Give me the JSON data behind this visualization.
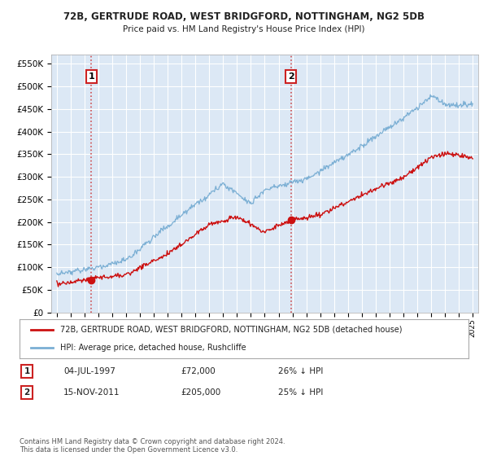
{
  "title": "72B, GERTRUDE ROAD, WEST BRIDGFORD, NOTTINGHAM, NG2 5DB",
  "subtitle": "Price paid vs. HM Land Registry's House Price Index (HPI)",
  "background_color": "#ffffff",
  "plot_bg_color": "#dce8f5",
  "grid_color": "#ffffff",
  "hpi_color": "#7bafd4",
  "price_color": "#cc1111",
  "marker_color": "#cc1111",
  "sale1_date_num": 1997.5,
  "sale1_price": 72000,
  "sale2_date_num": 2011.88,
  "sale2_price": 205000,
  "ylim_min": 0,
  "ylim_max": 570000,
  "xlim_min": 1994.6,
  "xlim_max": 2025.4,
  "legend_label_red": "72B, GERTRUDE ROAD, WEST BRIDGFORD, NOTTINGHAM, NG2 5DB (detached house)",
  "legend_label_blue": "HPI: Average price, detached house, Rushcliffe",
  "footnote": "Contains HM Land Registry data © Crown copyright and database right 2024.\nThis data is licensed under the Open Government Licence v3.0.",
  "table_row1_num": "1",
  "table_row1_date": "04-JUL-1997",
  "table_row1_price": "£72,000",
  "table_row1_hpi": "26% ↓ HPI",
  "table_row2_num": "2",
  "table_row2_date": "15-NOV-2011",
  "table_row2_price": "£205,000",
  "table_row2_hpi": "25% ↓ HPI"
}
